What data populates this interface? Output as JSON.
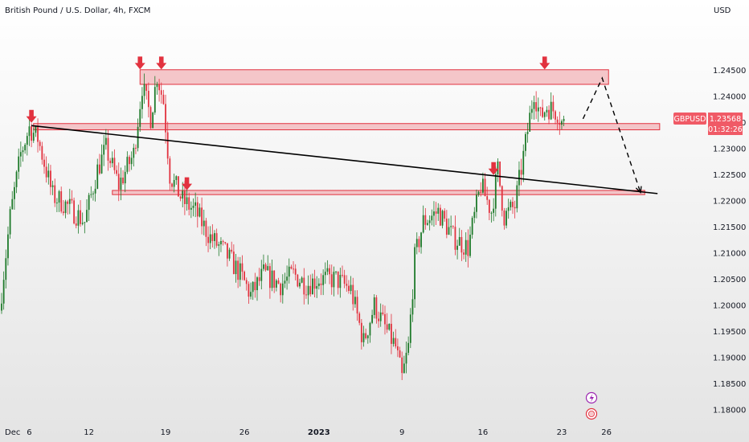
{
  "header": {
    "title": "British Pound / U.S. Dollar, 4h, FXCM",
    "currency": "USD"
  },
  "colors": {
    "up": "#1e7a2a",
    "down": "#e2323f",
    "zone_fill": "#f2b4b8",
    "zone_stroke": "#e2323f",
    "arrow": "#e2323f",
    "trendline": "#000000",
    "tag_bg": "#f05a66",
    "background_top": "#ffffff",
    "background_bottom": "#e4e4e4"
  },
  "price_tag": {
    "symbol": "GBPUSD",
    "price": "1.23568",
    "countdown": "01:32:26"
  },
  "icons": [
    "lightning-icon",
    "flag-icon"
  ],
  "chart_data": {
    "type": "candlestick",
    "title": "British Pound / U.S. Dollar, 4h, FXCM",
    "ylabel": "USD",
    "ylim": [
      1.1777,
      1.2546
    ],
    "y_ticks": [
      "1.24500",
      "1.24000",
      "1.23500",
      "1.23000",
      "1.22500",
      "1.22000",
      "1.21500",
      "1.21000",
      "1.20500",
      "1.20000",
      "1.19500",
      "1.19000",
      "1.18500",
      "1.18000"
    ],
    "y_tick_values": [
      1.245,
      1.24,
      1.235,
      1.23,
      1.225,
      1.22,
      1.215,
      1.21,
      1.205,
      1.2,
      1.195,
      1.19,
      1.185,
      1.18
    ],
    "x_ticks": [
      {
        "label": "Dec",
        "bold": false
      },
      {
        "label": "6",
        "bold": false
      },
      {
        "label": "12",
        "bold": false
      },
      {
        "label": "19",
        "bold": false
      },
      {
        "label": "26",
        "bold": false
      },
      {
        "label": "2023",
        "bold": true
      },
      {
        "label": "9",
        "bold": false
      },
      {
        "label": "16",
        "bold": false
      },
      {
        "label": "23",
        "bold": false
      },
      {
        "label": "26",
        "bold": false
      }
    ],
    "x_tick_index": [
      0,
      13,
      41,
      77,
      114,
      149,
      188,
      226,
      263,
      284
    ],
    "price_path": [
      [
        0,
        1.199
      ],
      [
        5,
        1.217
      ],
      [
        10,
        1.229
      ],
      [
        14,
        1.234
      ],
      [
        18,
        1.232
      ],
      [
        25,
        1.221
      ],
      [
        32,
        1.219
      ],
      [
        40,
        1.216
      ],
      [
        46,
        1.226
      ],
      [
        50,
        1.23
      ],
      [
        56,
        1.223
      ],
      [
        63,
        1.229
      ],
      [
        67,
        1.242
      ],
      [
        71,
        1.236
      ],
      [
        74,
        1.244
      ],
      [
        77,
        1.239
      ],
      [
        80,
        1.225
      ],
      [
        86,
        1.22
      ],
      [
        92,
        1.218
      ],
      [
        99,
        1.213
      ],
      [
        106,
        1.21
      ],
      [
        113,
        1.206
      ],
      [
        118,
        1.202
      ],
      [
        124,
        1.206
      ],
      [
        132,
        1.204
      ],
      [
        138,
        1.206
      ],
      [
        144,
        1.204
      ],
      [
        150,
        1.205
      ],
      [
        158,
        1.205
      ],
      [
        165,
        1.203
      ],
      [
        171,
        1.193
      ],
      [
        176,
        1.2
      ],
      [
        182,
        1.195
      ],
      [
        186,
        1.192
      ],
      [
        189,
        1.186
      ],
      [
        192,
        1.192
      ],
      [
        195,
        1.209
      ],
      [
        199,
        1.216
      ],
      [
        206,
        1.218
      ],
      [
        213,
        1.213
      ],
      [
        220,
        1.211
      ],
      [
        226,
        1.223
      ],
      [
        231,
        1.218
      ],
      [
        234,
        1.226
      ],
      [
        237,
        1.217
      ],
      [
        242,
        1.219
      ],
      [
        247,
        1.231
      ],
      [
        251,
        1.241
      ],
      [
        254,
        1.236
      ],
      [
        257,
        1.238
      ],
      [
        262,
        1.237
      ],
      [
        264,
        1.235
      ]
    ],
    "n_candles": 265,
    "resistance_zones": [
      {
        "start": 65,
        "end": 285,
        "low": 1.2423,
        "high": 1.2451
      },
      {
        "start": 15,
        "end": 309,
        "low": 1.2336,
        "high": 1.2348
      },
      {
        "start": 52,
        "end": 302,
        "low": 1.2212,
        "high": 1.222
      }
    ],
    "trendline": {
      "start": [
        14,
        1.2344
      ],
      "end": [
        308,
        1.2214
      ]
    },
    "projection": [
      [
        273,
        1.2357
      ],
      [
        282,
        1.2435
      ],
      [
        300,
        1.2216
      ]
    ],
    "arrows": [
      [
        14,
        1.2348
      ],
      [
        65,
        1.245
      ],
      [
        75,
        1.245
      ],
      [
        87,
        1.2219
      ],
      [
        231,
        1.2248
      ],
      [
        255,
        1.245
      ]
    ],
    "last_price": 1.23568
  }
}
